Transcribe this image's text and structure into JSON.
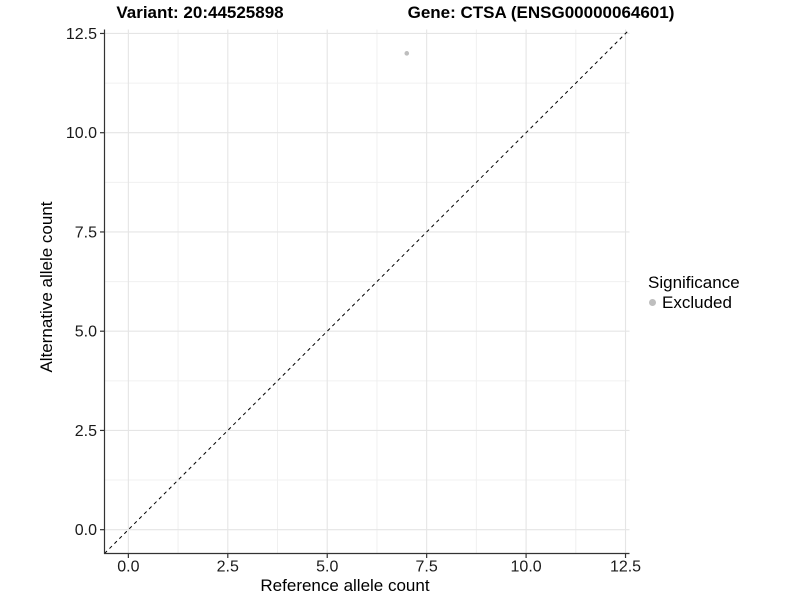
{
  "chart_data": {
    "type": "scatter",
    "title_left": "Variant: 20:44525898",
    "title_right": "Gene: CTSA (ENSG00000064601)",
    "xlabel": "Reference allele count",
    "ylabel": "Alternative allele count",
    "xlim": [
      -0.6,
      12.6
    ],
    "ylim": [
      -0.6,
      12.6
    ],
    "x_ticks": [
      0.0,
      2.5,
      5.0,
      7.5,
      10.0,
      12.5
    ],
    "y_ticks": [
      0.0,
      2.5,
      5.0,
      7.5,
      10.0,
      12.5
    ],
    "minor_step": 1.25,
    "grid": true,
    "points": [
      {
        "x": 7,
        "y": 12,
        "series": "Excluded"
      }
    ],
    "reference_line": {
      "kind": "identity",
      "style": "dashed",
      "color": "#000000"
    },
    "legend": {
      "title": "Significance",
      "position": "right",
      "items": [
        {
          "label": "Excluded",
          "color": "#bebebe"
        }
      ]
    },
    "colors": {
      "point": "#bebebe",
      "grid_major": "#e5e5e5",
      "grid_minor": "#f0f0f0",
      "axis": "#333333",
      "tick_text": "#1a1a1a"
    }
  }
}
